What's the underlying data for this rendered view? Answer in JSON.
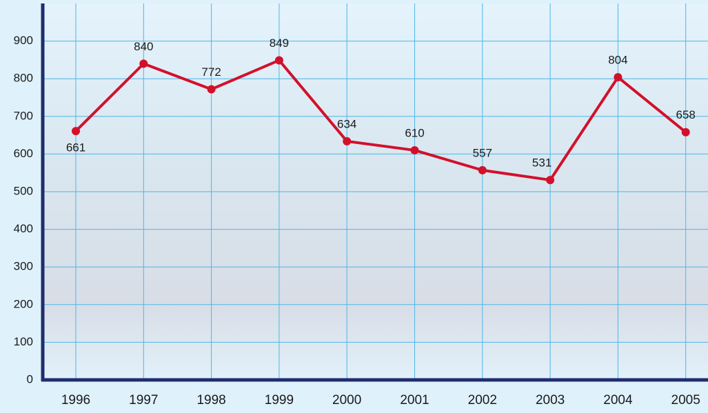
{
  "chart_data": {
    "type": "line",
    "categories": [
      "1996",
      "1997",
      "1998",
      "1999",
      "2000",
      "2001",
      "2002",
      "2003",
      "2004",
      "2005"
    ],
    "series": [
      {
        "color": "#d3102a",
        "values": [
          661,
          840,
          772,
          849,
          634,
          610,
          557,
          531,
          804,
          658
        ]
      }
    ],
    "ylim": [
      0,
      1000
    ],
    "yticks": [
      0,
      100,
      200,
      300,
      400,
      500,
      600,
      700,
      800,
      900
    ],
    "grid": true
  }
}
